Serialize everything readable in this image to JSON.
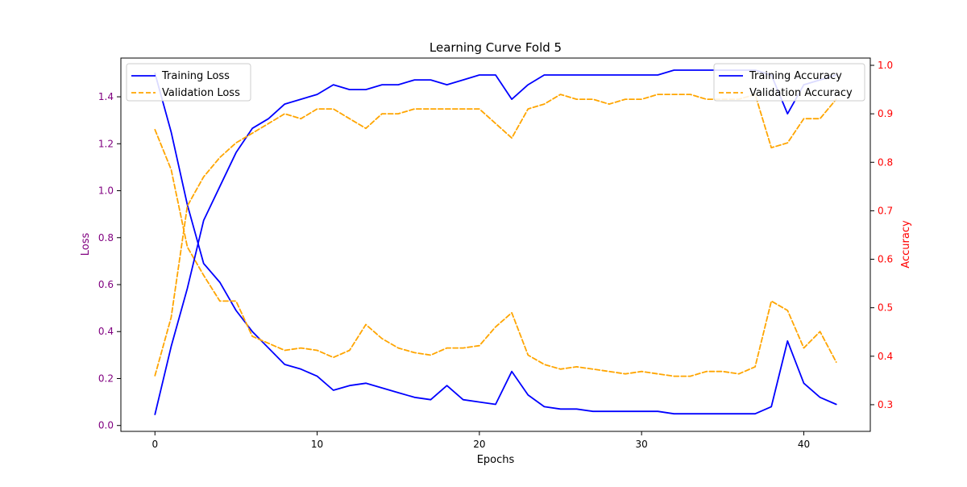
{
  "chart_data": {
    "type": "line",
    "title": "Learning Curve Fold 5",
    "xlabel": "Epochs",
    "ylabel_left": "Loss",
    "ylabel_right": "Accuracy",
    "xlim": [
      -2.1,
      44.1
    ],
    "ylim_left": [
      -0.025,
      1.565
    ],
    "ylim_right": [
      0.245,
      1.015
    ],
    "x_ticks": [
      0,
      10,
      20,
      30,
      40
    ],
    "y_ticks_left": [
      0.0,
      0.2,
      0.4,
      0.6,
      0.8,
      1.0,
      1.2,
      1.4
    ],
    "y_ticks_right": [
      0.3,
      0.4,
      0.5,
      0.6,
      0.7,
      0.8,
      0.9,
      1.0
    ],
    "colors": {
      "training": "#0000ff",
      "validation": "#ffa500",
      "left_axis": "#800080",
      "right_axis": "#ff0000"
    },
    "legends": {
      "loss": [
        "Training Loss",
        "Validation Loss"
      ],
      "accuracy": [
        "Training Accuracy",
        "Validation Accuracy"
      ]
    },
    "x": [
      0,
      1,
      2,
      3,
      4,
      5,
      6,
      7,
      8,
      9,
      10,
      11,
      12,
      13,
      14,
      15,
      16,
      17,
      18,
      19,
      20,
      21,
      22,
      23,
      24,
      25,
      26,
      27,
      28,
      29,
      30,
      31,
      32,
      33,
      34,
      35,
      36,
      37,
      38,
      39,
      40,
      41,
      42
    ],
    "series": [
      {
        "name": "Training Loss",
        "axis": "left",
        "style": "solid",
        "values": [
          1.5,
          1.25,
          0.94,
          0.69,
          0.61,
          0.49,
          0.4,
          0.33,
          0.26,
          0.24,
          0.21,
          0.15,
          0.17,
          0.18,
          0.16,
          0.14,
          0.12,
          0.11,
          0.17,
          0.11,
          0.1,
          0.09,
          0.23,
          0.13,
          0.08,
          0.07,
          0.07,
          0.06,
          0.06,
          0.06,
          0.06,
          0.06,
          0.05,
          0.05,
          0.05,
          0.05,
          0.05,
          0.05,
          0.08,
          0.36,
          0.18,
          0.12,
          0.09
        ]
      },
      {
        "name": "Validation Loss",
        "axis": "left",
        "style": "dashed",
        "values": [
          1.26,
          1.09,
          0.76,
          0.64,
          0.53,
          0.53,
          0.38,
          0.35,
          0.32,
          0.33,
          0.32,
          0.29,
          0.32,
          0.43,
          0.37,
          0.33,
          0.31,
          0.3,
          0.33,
          0.33,
          0.34,
          0.42,
          0.48,
          0.3,
          0.26,
          0.24,
          0.25,
          0.24,
          0.23,
          0.22,
          0.23,
          0.22,
          0.21,
          0.21,
          0.23,
          0.23,
          0.22,
          0.25,
          0.53,
          0.49,
          0.33,
          0.4,
          0.27
        ]
      },
      {
        "name": "Training Accuracy",
        "axis": "right",
        "style": "solid",
        "values": [
          0.28,
          0.42,
          0.54,
          0.68,
          0.75,
          0.82,
          0.87,
          0.89,
          0.92,
          0.93,
          0.94,
          0.96,
          0.95,
          0.95,
          0.96,
          0.96,
          0.97,
          0.97,
          0.96,
          0.97,
          0.98,
          0.98,
          0.93,
          0.96,
          0.98,
          0.98,
          0.98,
          0.98,
          0.98,
          0.98,
          0.98,
          0.98,
          0.99,
          0.99,
          0.99,
          0.99,
          0.99,
          0.99,
          0.98,
          0.9,
          0.96,
          0.97,
          0.98
        ]
      },
      {
        "name": "Validation Accuracy",
        "axis": "right",
        "style": "dashed",
        "values": [
          0.36,
          0.48,
          0.71,
          0.77,
          0.81,
          0.84,
          0.86,
          0.88,
          0.9,
          0.89,
          0.91,
          0.91,
          0.89,
          0.87,
          0.9,
          0.9,
          0.91,
          0.91,
          0.91,
          0.91,
          0.91,
          0.88,
          0.85,
          0.91,
          0.92,
          0.94,
          0.93,
          0.93,
          0.92,
          0.93,
          0.93,
          0.94,
          0.94,
          0.94,
          0.93,
          0.93,
          0.93,
          0.94,
          0.83,
          0.84,
          0.89,
          0.89,
          0.93
        ]
      }
    ]
  }
}
